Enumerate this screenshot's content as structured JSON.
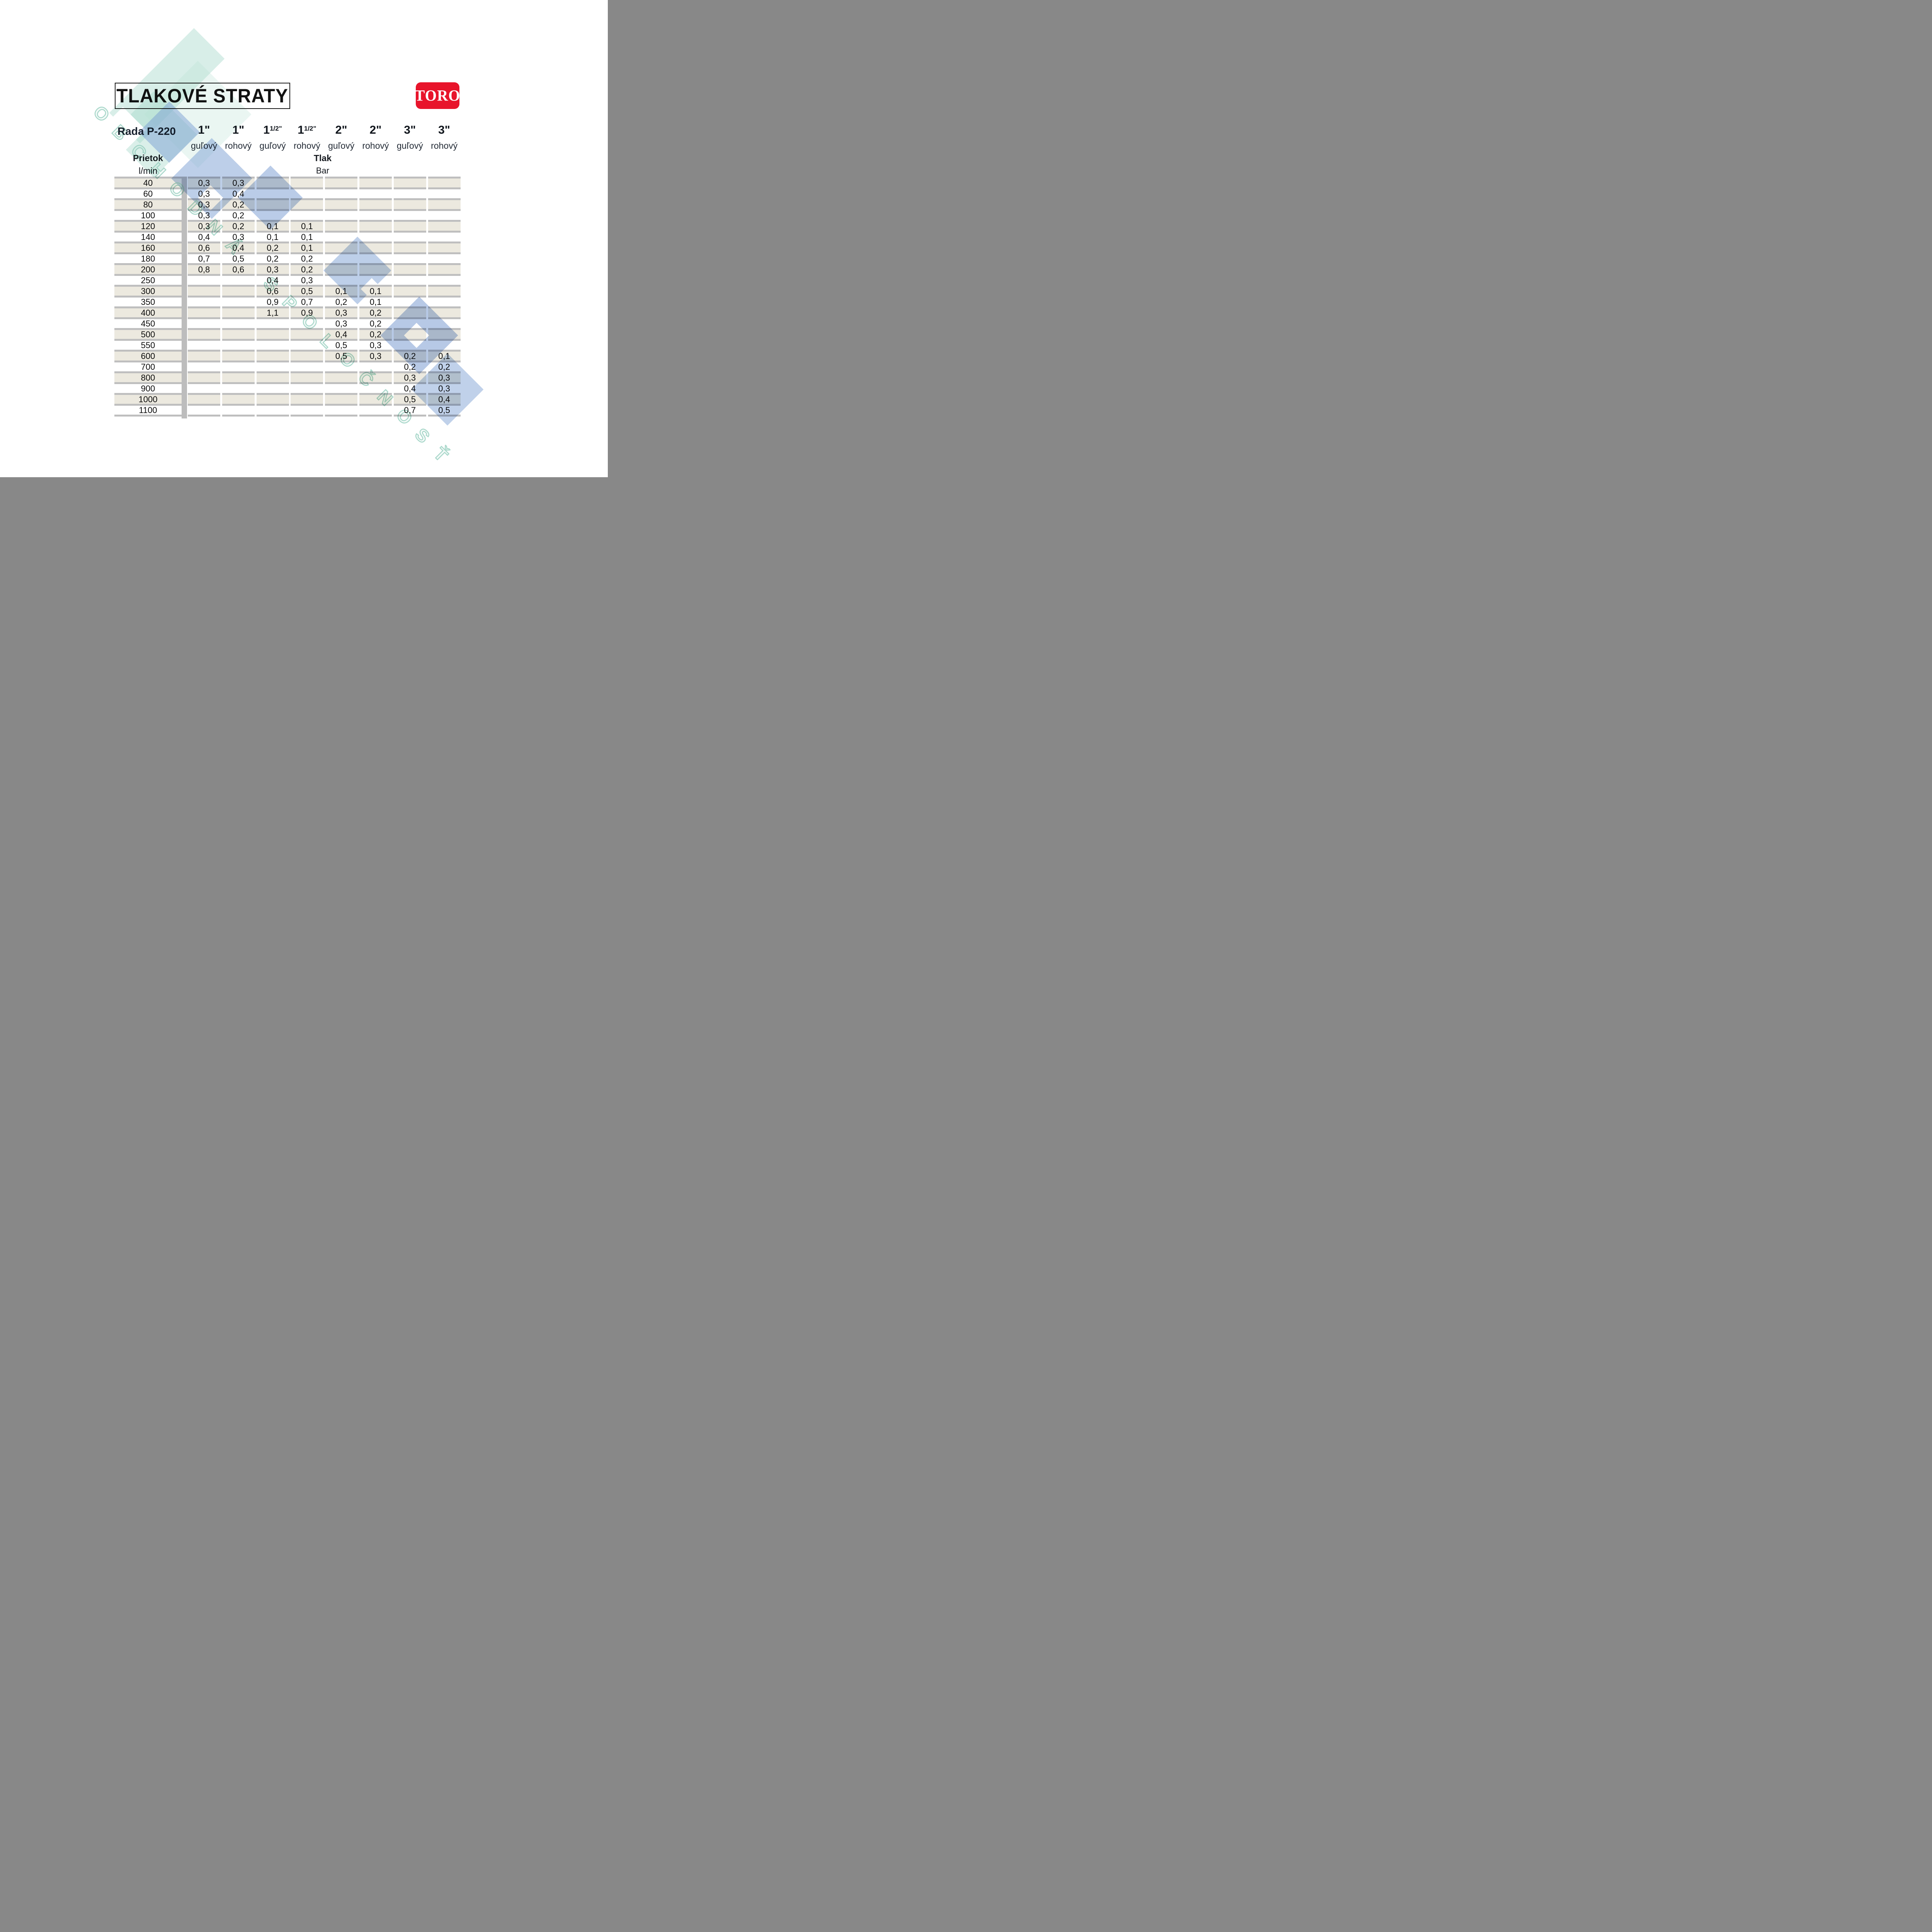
{
  "title": "TLAKOVÉ STRATY",
  "logo": {
    "text": "TORO",
    "color": "#E8142B"
  },
  "series_label": "Rada P-220",
  "columns": [
    {
      "size": "1\"",
      "sup": "",
      "type": "guľový"
    },
    {
      "size": "1\"",
      "sup": "",
      "type": "rohový"
    },
    {
      "size": "1",
      "sup": "1/2\"",
      "type": "guľový"
    },
    {
      "size": "1",
      "sup": "1/2\"",
      "type": "rohový"
    },
    {
      "size": "2\"",
      "sup": "",
      "type": "guľový"
    },
    {
      "size": "2\"",
      "sup": "",
      "type": "rohový"
    },
    {
      "size": "3\"",
      "sup": "",
      "type": "guľový"
    },
    {
      "size": "3\"",
      "sup": "",
      "type": "rohový"
    }
  ],
  "flow_header": {
    "label": "Prietok",
    "unit": "l/min"
  },
  "pressure_header": {
    "label": "Tlak",
    "unit": "Bar"
  },
  "rows": [
    {
      "flow": "40",
      "values": [
        "0,3",
        "0,3",
        "",
        "",
        "",
        "",
        "",
        ""
      ]
    },
    {
      "flow": "60",
      "values": [
        "0,3",
        "0,4",
        "",
        "",
        "",
        "",
        "",
        ""
      ]
    },
    {
      "flow": "80",
      "values": [
        "0,3",
        "0,2",
        "",
        "",
        "",
        "",
        "",
        ""
      ]
    },
    {
      "flow": "100",
      "values": [
        "0,3",
        "0,2",
        "",
        "",
        "",
        "",
        "",
        ""
      ]
    },
    {
      "flow": "120",
      "values": [
        "0,3",
        "0,2",
        "0,1",
        "0,1",
        "",
        "",
        "",
        ""
      ]
    },
    {
      "flow": "140",
      "values": [
        "0,4",
        "0,3",
        "0,1",
        "0,1",
        "",
        "",
        "",
        ""
      ]
    },
    {
      "flow": "160",
      "values": [
        "0,6",
        "0,4",
        "0,2",
        "0,1",
        "",
        "",
        "",
        ""
      ]
    },
    {
      "flow": "180",
      "values": [
        "0,7",
        "0,5",
        "0,2",
        "0,2",
        "",
        "",
        "",
        ""
      ]
    },
    {
      "flow": "200",
      "values": [
        "0,8",
        "0,6",
        "0,3",
        "0,2",
        "",
        "",
        "",
        ""
      ]
    },
    {
      "flow": "250",
      "values": [
        "",
        "",
        "0,4",
        "0,3",
        "",
        "",
        "",
        ""
      ]
    },
    {
      "flow": "300",
      "values": [
        "",
        "",
        "0,6",
        "0,5",
        "0,1",
        "0,1",
        "",
        ""
      ]
    },
    {
      "flow": "350",
      "values": [
        "",
        "",
        "0,9",
        "0,7",
        "0,2",
        "0,1",
        "",
        ""
      ]
    },
    {
      "flow": "400",
      "values": [
        "",
        "",
        "1,1",
        "0,9",
        "0,3",
        "0,2",
        "",
        ""
      ]
    },
    {
      "flow": "450",
      "values": [
        "",
        "",
        "",
        "",
        "0,3",
        "0,2",
        "",
        ""
      ]
    },
    {
      "flow": "500",
      "values": [
        "",
        "",
        "",
        "",
        "0,4",
        "0,2",
        "",
        ""
      ]
    },
    {
      "flow": "550",
      "values": [
        "",
        "",
        "",
        "",
        "0,5",
        "0,3",
        "",
        ""
      ]
    },
    {
      "flow": "600",
      "values": [
        "",
        "",
        "",
        "",
        "0,5",
        "0,3",
        "0,2",
        "0,1"
      ]
    },
    {
      "flow": "700",
      "values": [
        "",
        "",
        "",
        "",
        "",
        "",
        "0,2",
        "0,2"
      ]
    },
    {
      "flow": "800",
      "values": [
        "",
        "",
        "",
        "",
        "",
        "",
        "0,3",
        "0,3"
      ]
    },
    {
      "flow": "900",
      "values": [
        "",
        "",
        "",
        "",
        "",
        "",
        "0,4",
        "0,3"
      ]
    },
    {
      "flow": "1000",
      "values": [
        "",
        "",
        "",
        "",
        "",
        "",
        "0,5",
        "0,4"
      ]
    },
    {
      "flow": "1100",
      "values": [
        "",
        "",
        "",
        "",
        "",
        "",
        "0,7",
        "0,5"
      ]
    }
  ],
  "watermark": {
    "diagonal_text": "OBCHODNÁ SPOLOČNOSŤ",
    "teal": "#9ED3C2",
    "blue": "#7C9FD4"
  },
  "colors": {
    "row_stripe": "#ECE9DF",
    "grid_line": "#BFBFBF",
    "toro_red": "#E8142B"
  }
}
